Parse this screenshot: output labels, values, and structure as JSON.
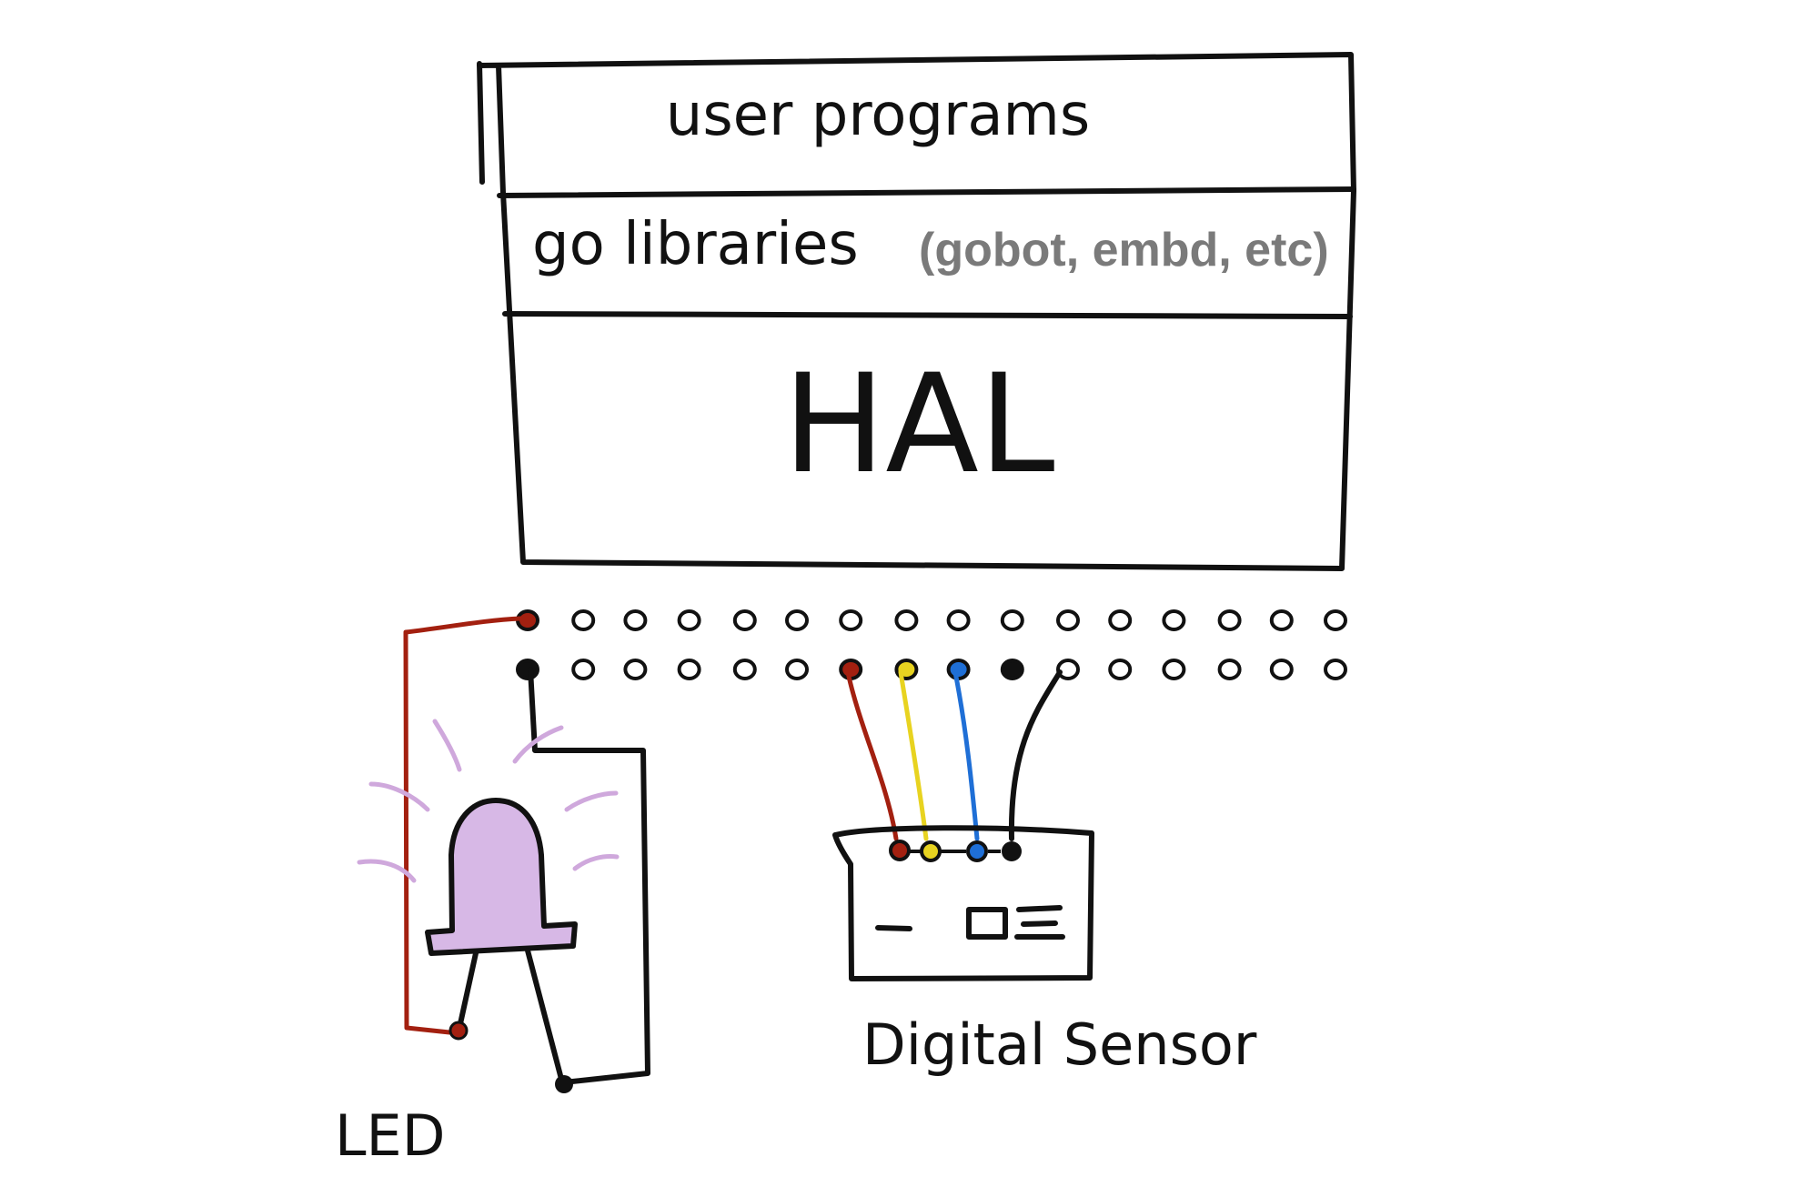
{
  "stack": {
    "top_label": "user programs",
    "middle_label": "go libraries",
    "middle_note": "(gobot, embd, etc)",
    "bottom_label": "HAL"
  },
  "components": {
    "led_label": "LED",
    "sensor_label": "Digital Sensor"
  },
  "colors": {
    "outline": "#111111",
    "wire_red": "#a32010",
    "wire_yellow": "#e8d320",
    "wire_blue": "#1f6fd6",
    "wire_black": "#111111",
    "led_fill": "#d7b8e6",
    "led_glow": "#cfa8dc",
    "note_gray": "#7a7a7a"
  },
  "header_pins": {
    "rows": 2,
    "per_row": 16,
    "active_top": [
      {
        "index": 0,
        "color": "red"
      }
    ],
    "active_bottom": [
      {
        "index": 0,
        "color": "black"
      },
      {
        "index": 6,
        "color": "red"
      },
      {
        "index": 7,
        "color": "yellow"
      },
      {
        "index": 8,
        "color": "blue"
      },
      {
        "index": 9,
        "color": "black"
      }
    ]
  }
}
